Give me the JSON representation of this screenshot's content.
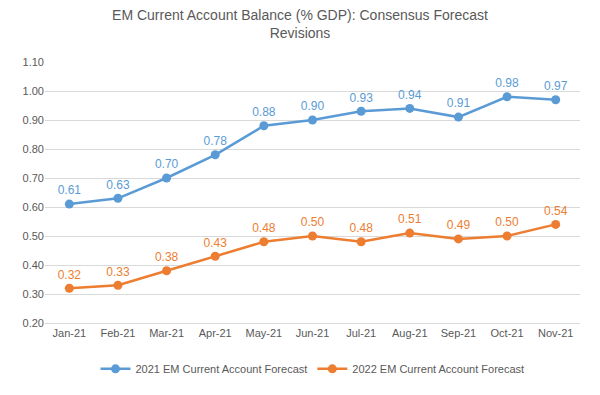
{
  "chart_data": {
    "type": "line",
    "title": "EM Current Account Balance (% GDP): Consensus Forecast Revisions",
    "categories": [
      "Jan-21",
      "Feb-21",
      "Mar-21",
      "Apr-21",
      "May-21",
      "Jun-21",
      "Jul-21",
      "Aug-21",
      "Sep-21",
      "Oct-21",
      "Nov-21"
    ],
    "series": [
      {
        "name": "2021 EM Current Account Forecast",
        "color": "#5b9bd5",
        "marker": "circle",
        "line_style": "solid",
        "values": [
          0.61,
          0.63,
          0.7,
          0.78,
          0.88,
          0.9,
          0.93,
          0.94,
          0.91,
          0.98,
          0.97
        ],
        "value_labels": [
          "0.61",
          "0.63",
          "0.70",
          "0.78",
          "0.88",
          "0.90",
          "0.93",
          "0.94",
          "0.91",
          "0.98",
          "0.97"
        ]
      },
      {
        "name": "2022 EM Current Account Forecast",
        "color": "#ed7d31",
        "marker": "circle",
        "line_style": "solid",
        "values": [
          0.32,
          0.33,
          0.38,
          0.43,
          0.48,
          0.5,
          0.48,
          0.51,
          0.49,
          0.5,
          0.54
        ],
        "value_labels": [
          "0.32",
          "0.33",
          "0.38",
          "0.43",
          "0.48",
          "0.50",
          "0.48",
          "0.51",
          "0.49",
          "0.50",
          "0.54"
        ]
      }
    ],
    "ylim": [
      0.2,
      1.1
    ],
    "yticks": [
      {
        "value": 0.2,
        "label": "0.20"
      },
      {
        "value": 0.3,
        "label": "0.30"
      },
      {
        "value": 0.4,
        "label": "0.40"
      },
      {
        "value": 0.5,
        "label": "0.50"
      },
      {
        "value": 0.6,
        "label": "0.60"
      },
      {
        "value": 0.7,
        "label": "0.70"
      },
      {
        "value": 0.8,
        "label": "0.80"
      },
      {
        "value": 0.9,
        "label": "0.90"
      },
      {
        "value": 1.0,
        "label": "1.00"
      },
      {
        "value": 1.1,
        "label": "1.10"
      }
    ],
    "grid": true,
    "legend": "bottom",
    "data_labels": true
  }
}
